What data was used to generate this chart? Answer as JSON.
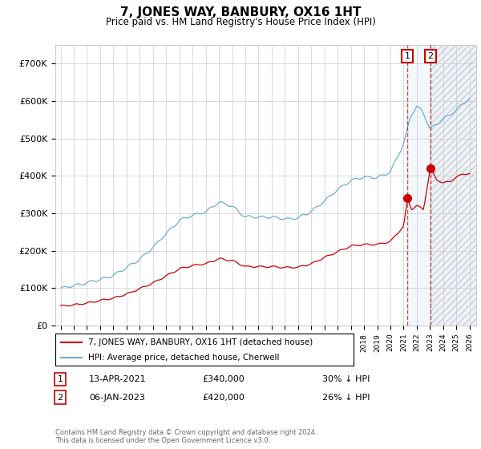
{
  "title": "7, JONES WAY, BANBURY, OX16 1HT",
  "subtitle": "Price paid vs. HM Land Registry's House Price Index (HPI)",
  "ylim": [
    0,
    750000
  ],
  "yticks": [
    0,
    100000,
    200000,
    300000,
    400000,
    500000,
    600000,
    700000
  ],
  "ytick_labels": [
    "£0",
    "£100K",
    "£200K",
    "£300K",
    "£400K",
    "£500K",
    "£600K",
    "£700K"
  ],
  "background_color": "#ffffff",
  "grid_color": "#cccccc",
  "hpi_color": "#6baed6",
  "price_color": "#cc0000",
  "marker1_x": 2021.28,
  "marker2_x": 2023.03,
  "marker1_price": 340000,
  "marker2_price": 420000,
  "annotation1": {
    "label": "1",
    "date": "13-APR-2021",
    "price": "£340,000",
    "pct": "30% ↓ HPI"
  },
  "annotation2": {
    "label": "2",
    "date": "06-JAN-2023",
    "price": "£420,000",
    "pct": "26% ↓ HPI"
  },
  "legend_line1": "7, JONES WAY, BANBURY, OX16 1HT (detached house)",
  "legend_line2": "HPI: Average price, detached house, Cherwell",
  "footer": "Contains HM Land Registry data © Crown copyright and database right 2024.\nThis data is licensed under the Open Government Licence v3.0.",
  "x_start_year": 1995,
  "x_end_year": 2026
}
